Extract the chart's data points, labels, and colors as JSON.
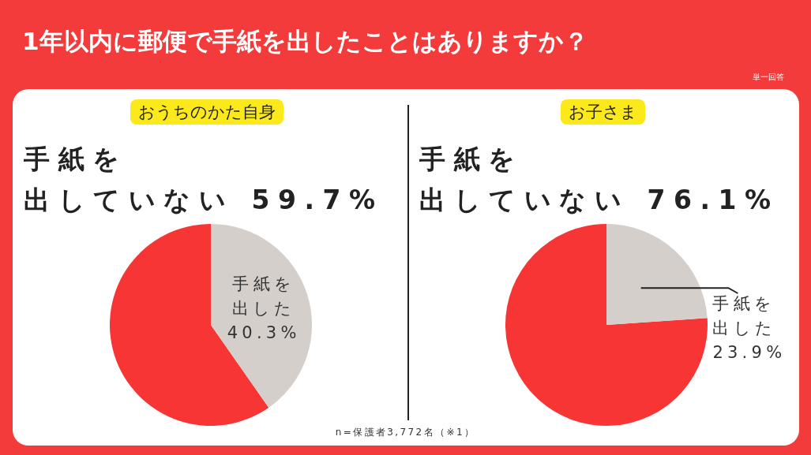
{
  "chart_data": [
    {
      "type": "pie",
      "title": "1年以内に郵便で手紙を出したことはありますか？",
      "subtitle": "おうちのかた自身",
      "categories": [
        "手紙を出していない",
        "手紙を出した"
      ],
      "values": [
        59.7,
        40.3
      ],
      "value_labels": [
        "59.7%",
        "40.3%"
      ],
      "colors": [
        "#f73535",
        "#d5cfcb"
      ],
      "annotations": [
        "単一回答",
        "n=保護者3,772名（※1）"
      ]
    },
    {
      "type": "pie",
      "subtitle": "お子さま",
      "categories": [
        "手紙を出していない",
        "手紙を出した"
      ],
      "values": [
        76.1,
        23.9
      ],
      "value_labels": [
        "76.1%",
        "23.9%"
      ],
      "colors": [
        "#f73535",
        "#d5cfcb"
      ]
    }
  ]
}
